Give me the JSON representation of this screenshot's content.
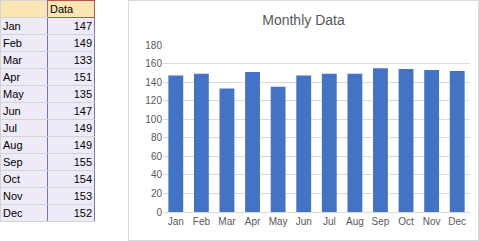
{
  "chart_data": {
    "type": "bar",
    "title": "Monthly Data",
    "categories": [
      "Jan",
      "Feb",
      "Mar",
      "Apr",
      "May",
      "Jun",
      "Jul",
      "Aug",
      "Sep",
      "Oct",
      "Nov",
      "Dec"
    ],
    "values": [
      147,
      149,
      133,
      151,
      135,
      147,
      149,
      149,
      155,
      154,
      153,
      152
    ],
    "color": "#4472c4",
    "ylim": [
      0,
      180
    ],
    "yticks": [
      0,
      20,
      40,
      60,
      80,
      100,
      120,
      140,
      160,
      180
    ],
    "grid": true
  },
  "table": {
    "column": "Data",
    "rows": [
      [
        "Jan",
        147
      ],
      [
        "Feb",
        149
      ],
      [
        "Mar",
        133
      ],
      [
        "Apr",
        151
      ],
      [
        "May",
        135
      ],
      [
        "Jun",
        147
      ],
      [
        "Jul",
        149
      ],
      [
        "Aug",
        149
      ],
      [
        "Sep",
        155
      ],
      [
        "Oct",
        154
      ],
      [
        "Nov",
        153
      ],
      [
        "Dec",
        152
      ]
    ]
  }
}
